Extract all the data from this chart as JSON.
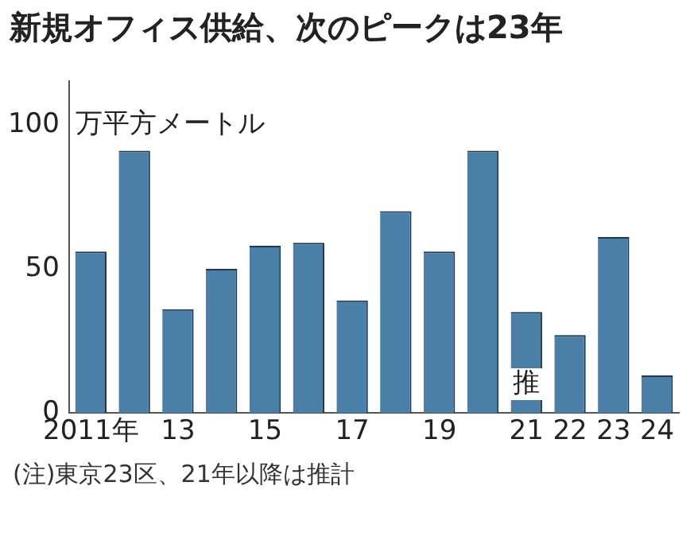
{
  "chart_data": {
    "type": "bar",
    "title": "新規オフィス供給、次のピークは23年",
    "ylabel": "万平方メートル",
    "categories": [
      "2011年",
      null,
      "13",
      null,
      "15",
      null,
      "17",
      null,
      "19",
      null,
      "21",
      "22",
      "23",
      "24"
    ],
    "values": [
      56,
      91,
      36,
      50,
      58,
      59,
      39,
      70,
      56,
      91,
      35,
      27,
      61,
      13
    ],
    "color": "#4a7fa8",
    "ylim": [
      0,
      115
    ],
    "yticks": [
      0,
      50,
      100
    ],
    "grid": false,
    "legend": false,
    "annotations": [
      {
        "text": "推",
        "x": "21",
        "y": 10
      },
      "(注)東京23区、21年以降は推計"
    ]
  }
}
